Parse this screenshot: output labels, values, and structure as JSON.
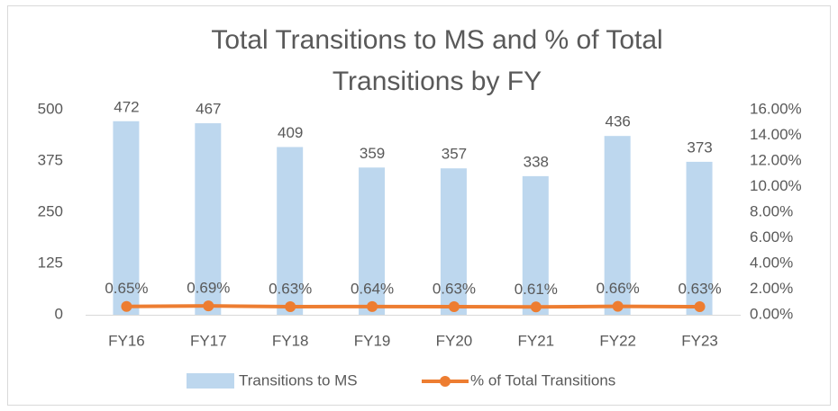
{
  "chart_data": {
    "type": "bar",
    "title": "Total Transitions to MS and % of Total Transitions by FY",
    "categories": [
      "FY16",
      "FY17",
      "FY18",
      "FY19",
      "FY20",
      "FY21",
      "FY22",
      "FY23"
    ],
    "series": [
      {
        "name": "Transitions to MS",
        "type": "bar",
        "color": "#bdd7ee",
        "values": [
          472,
          467,
          409,
          359,
          357,
          338,
          436,
          373
        ]
      },
      {
        "name": "% of Total Transitions",
        "type": "line",
        "axis": "y2",
        "color": "#ed7d31",
        "values": [
          0.65,
          0.69,
          0.63,
          0.64,
          0.63,
          0.61,
          0.66,
          0.63
        ],
        "value_labels": [
          "0.65%",
          "0.69%",
          "0.63%",
          "0.64%",
          "0.63%",
          "0.61%",
          "0.66%",
          "0.63%"
        ]
      }
    ],
    "ylim": [
      0,
      500
    ],
    "yticks": [
      0,
      125,
      250,
      375,
      500
    ],
    "y2lim": [
      0,
      16
    ],
    "y2ticks": [
      {
        "value": 0,
        "label": "0.00%"
      },
      {
        "value": 2,
        "label": "2.00%"
      },
      {
        "value": 4,
        "label": "4.00%"
      },
      {
        "value": 6,
        "label": "6.00%"
      },
      {
        "value": 8,
        "label": "8.00%"
      },
      {
        "value": 10,
        "label": "10.00%"
      },
      {
        "value": 12,
        "label": "12.00%"
      },
      {
        "value": 14,
        "label": "14.00%"
      },
      {
        "value": 16,
        "label": "16.00%"
      }
    ],
    "grid": false,
    "legend": "bottom"
  }
}
